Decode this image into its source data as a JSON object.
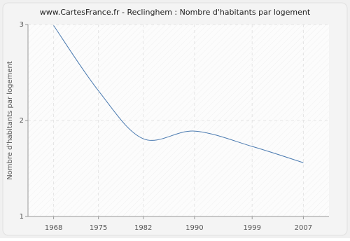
{
  "chart_data": {
    "type": "line",
    "title": "www.CartesFrance.fr - Reclinghem : Nombre d'habitants par logement",
    "y_label": "Nombre d'habitants par logement",
    "x": [
      1968,
      1975,
      1982,
      1990,
      1999,
      2007
    ],
    "series": [
      {
        "name": "Nombre d'habitants par logement",
        "color": "#4a7ab0",
        "values": [
          2.99,
          2.31,
          1.81,
          1.89,
          1.73,
          1.56
        ]
      }
    ],
    "xlim": [
      1964,
      2011
    ],
    "ylim": [
      1,
      3
    ],
    "xticks": [
      1968,
      1975,
      1982,
      1990,
      1999,
      2007
    ],
    "yticks": [
      1,
      2,
      3
    ],
    "grid": true
  }
}
